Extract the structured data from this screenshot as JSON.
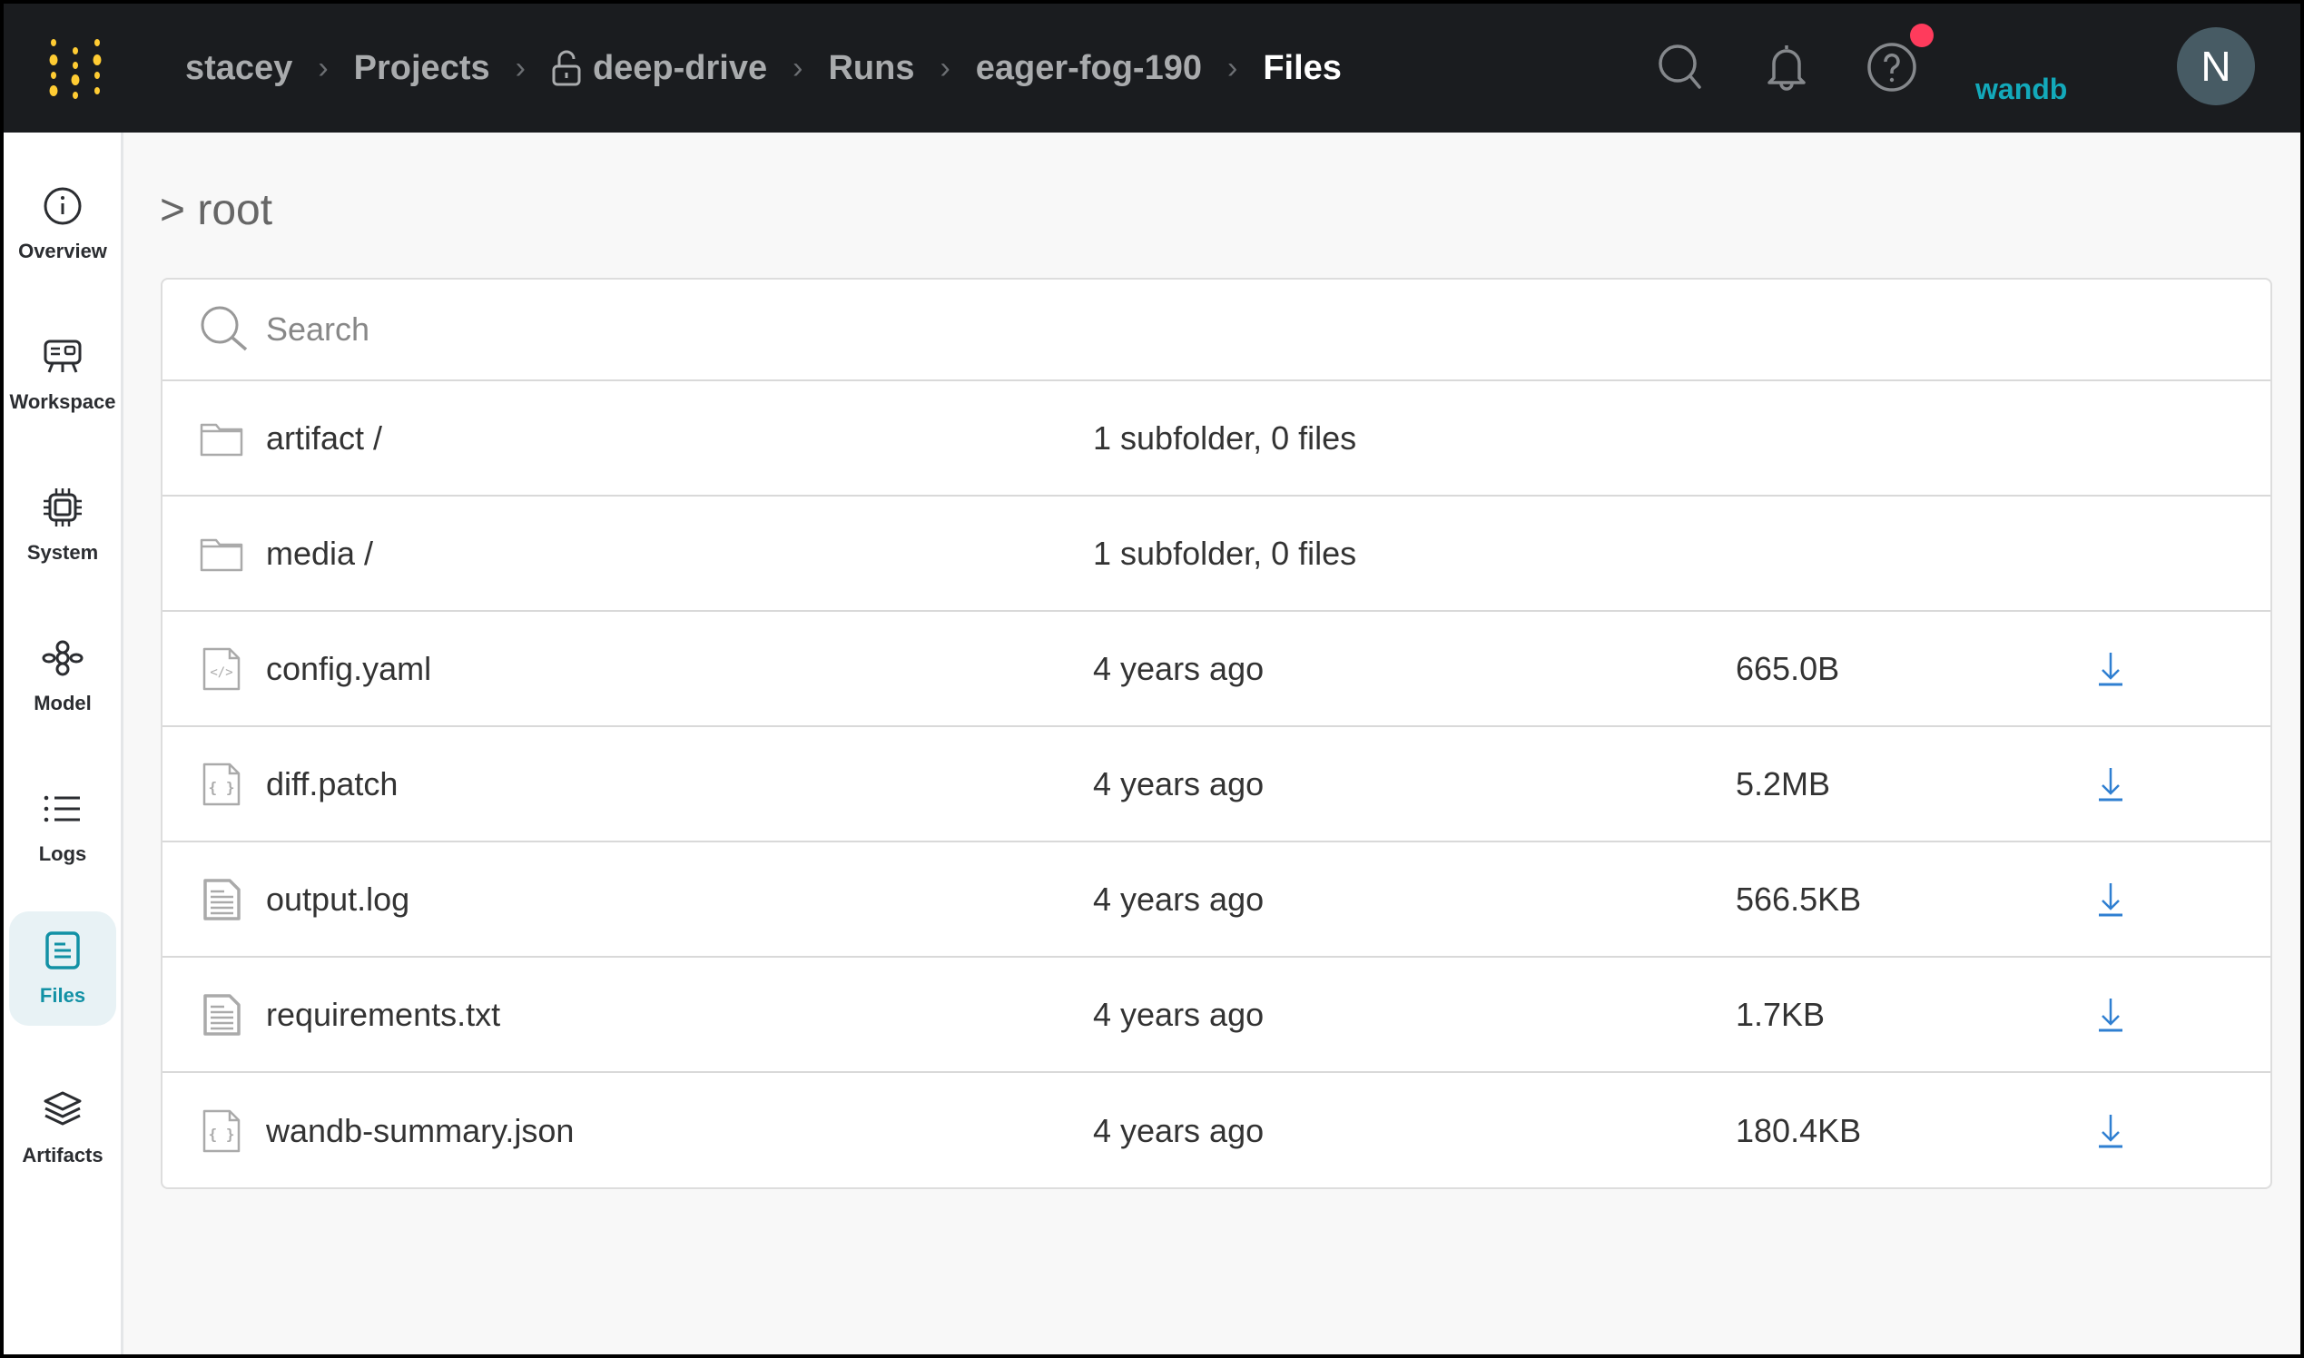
{
  "header": {
    "breadcrumbs": [
      "stacey",
      "Projects",
      "deep-drive",
      "Runs",
      "eager-fog-190",
      "Files"
    ],
    "entity_label": "wandb",
    "avatar_initial": "N",
    "colors": {
      "background": "#1a1c1f",
      "logo": "#ffcc33",
      "accent": "#13a9ba",
      "notification": "#ff3b5c"
    }
  },
  "sidebar": {
    "items": [
      {
        "label": "Overview",
        "icon": "info-icon"
      },
      {
        "label": "Workspace",
        "icon": "workspace-icon"
      },
      {
        "label": "System",
        "icon": "chip-icon"
      },
      {
        "label": "Model",
        "icon": "model-graph-icon"
      },
      {
        "label": "Logs",
        "icon": "list-icon"
      },
      {
        "label": "Files",
        "icon": "file-icon",
        "active": true
      },
      {
        "label": "Artifacts",
        "icon": "layers-icon"
      }
    ]
  },
  "main": {
    "path": "> root",
    "search_placeholder": "Search",
    "rows": [
      {
        "name": "artifact /",
        "info": "1 subfolder, 0 files",
        "size": "",
        "type": "folder"
      },
      {
        "name": "media /",
        "info": "1 subfolder, 0 files",
        "size": "",
        "type": "folder"
      },
      {
        "name": "config.yaml",
        "info": "4 years ago",
        "size": "665.0B",
        "type": "code"
      },
      {
        "name": "diff.patch",
        "info": "4 years ago",
        "size": "5.2MB",
        "type": "json"
      },
      {
        "name": "output.log",
        "info": "4 years ago",
        "size": "566.5KB",
        "type": "text"
      },
      {
        "name": "requirements.txt",
        "info": "4 years ago",
        "size": "1.7KB",
        "type": "text"
      },
      {
        "name": "wandb-summary.json",
        "info": "4 years ago",
        "size": "180.4KB",
        "type": "json"
      }
    ]
  }
}
